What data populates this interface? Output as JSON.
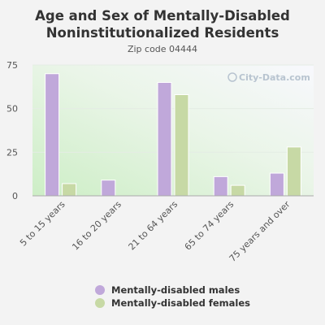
{
  "chart_data": {
    "type": "bar",
    "title": "Age and Sex of Mentally-Disabled Noninstitutionalized Residents",
    "subtitle": "Zip code 04444",
    "categories": [
      "5 to 15 years",
      "16 to 20 years",
      "21 to 64 years",
      "65 to 74 years",
      "75 years and over"
    ],
    "series": [
      {
        "name": "Mentally-disabled males",
        "values": [
          70,
          9,
          65,
          11,
          13
        ],
        "color": "#c0a8da"
      },
      {
        "name": "Mentally-disabled females",
        "values": [
          7,
          0,
          58,
          6,
          28
        ],
        "color": "#c7d9a5"
      }
    ],
    "yticks": [
      0,
      25,
      50,
      75
    ],
    "ylim": [
      0,
      75
    ],
    "grid": true,
    "legend": "bottom",
    "watermark": "City-Data.com"
  }
}
